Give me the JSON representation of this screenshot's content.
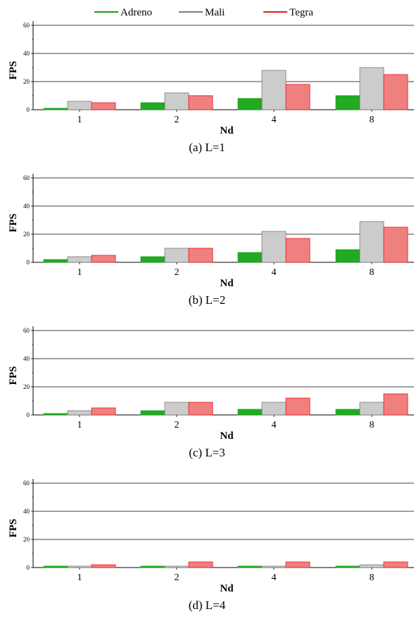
{
  "legend": [
    {
      "label": "Adreno",
      "color": "#1a9a1a"
    },
    {
      "label": "Mali",
      "color": "#7a7a7a"
    },
    {
      "label": "Tegra",
      "color": "#e81818"
    }
  ],
  "fill_colors": {
    "Adreno": "#22aa22",
    "Mali": "#cccccc",
    "Tegra": "#f08080"
  },
  "chart_data": [
    {
      "type": "bar",
      "caption": "(a) L=1",
      "xlabel": "Nd",
      "ylabel": "FPS",
      "categories": [
        "1",
        "2",
        "4",
        "8"
      ],
      "ylim": [
        0,
        60
      ],
      "yticks": [
        0,
        20,
        40,
        60
      ],
      "grid": true,
      "series": [
        {
          "name": "Adreno",
          "values": [
            1,
            5,
            8,
            10
          ]
        },
        {
          "name": "Mali",
          "values": [
            6,
            12,
            28,
            30
          ]
        },
        {
          "name": "Tegra",
          "values": [
            5,
            10,
            18,
            25
          ]
        }
      ]
    },
    {
      "type": "bar",
      "caption": "(b) L=2",
      "xlabel": "Nd",
      "ylabel": "FPS",
      "categories": [
        "1",
        "2",
        "4",
        "8"
      ],
      "ylim": [
        0,
        60
      ],
      "yticks": [
        0,
        20,
        40,
        60
      ],
      "grid": true,
      "series": [
        {
          "name": "Adreno",
          "values": [
            2,
            4,
            7,
            9
          ]
        },
        {
          "name": "Mali",
          "values": [
            4,
            10,
            22,
            29
          ]
        },
        {
          "name": "Tegra",
          "values": [
            5,
            10,
            17,
            25
          ]
        }
      ]
    },
    {
      "type": "bar",
      "caption": "(c) L=3",
      "xlabel": "Nd",
      "ylabel": "FPS",
      "categories": [
        "1",
        "2",
        "4",
        "8"
      ],
      "ylim": [
        0,
        60
      ],
      "yticks": [
        0,
        20,
        40,
        60
      ],
      "grid": true,
      "series": [
        {
          "name": "Adreno",
          "values": [
            1,
            3,
            4,
            4
          ]
        },
        {
          "name": "Mali",
          "values": [
            3,
            9,
            9,
            9
          ]
        },
        {
          "name": "Tegra",
          "values": [
            5,
            9,
            12,
            15
          ]
        }
      ]
    },
    {
      "type": "bar",
      "caption": "(d) L=4",
      "xlabel": "Nd",
      "ylabel": "FPS",
      "categories": [
        "1",
        "2",
        "4",
        "8"
      ],
      "ylim": [
        0,
        60
      ],
      "yticks": [
        0,
        20,
        40,
        60
      ],
      "grid": true,
      "series": [
        {
          "name": "Adreno",
          "values": [
            1,
            1,
            1,
            1
          ]
        },
        {
          "name": "Mali",
          "values": [
            1,
            1,
            1,
            2
          ]
        },
        {
          "name": "Tegra",
          "values": [
            2,
            4,
            4,
            4
          ]
        }
      ]
    }
  ]
}
